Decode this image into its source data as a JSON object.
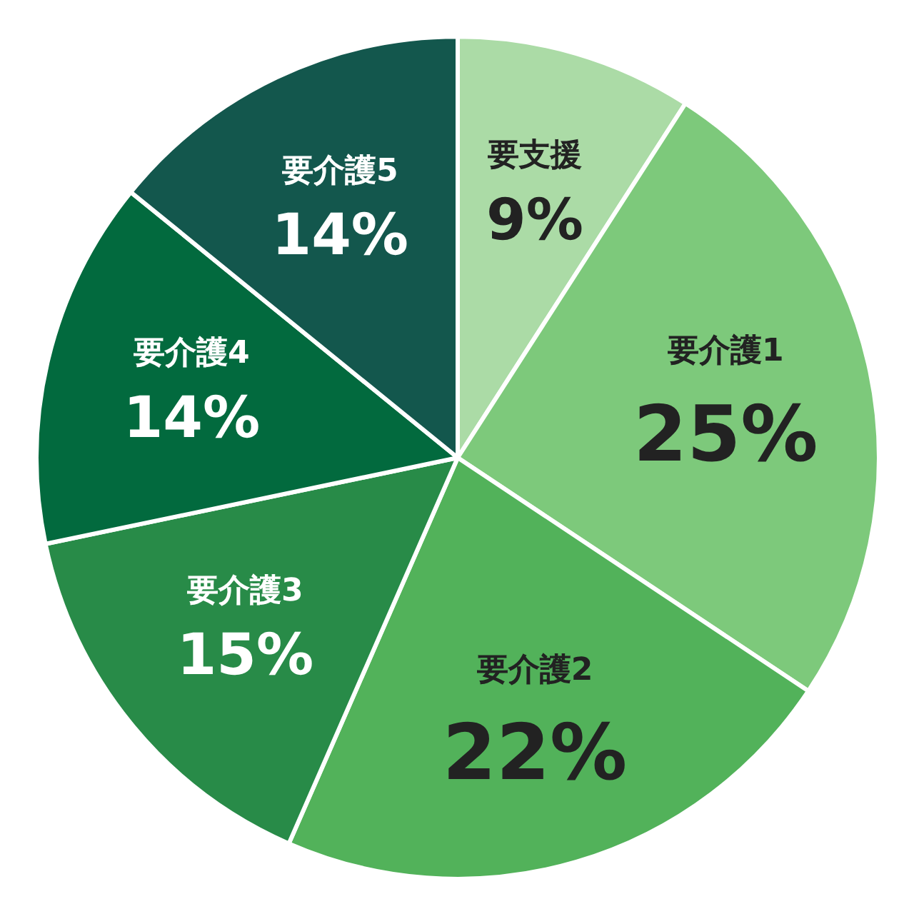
{
  "chart_data": {
    "type": "pie",
    "categories": [
      "要支援",
      "要介護1",
      "要介護2",
      "要介護3",
      "要介護4",
      "要介護5"
    ],
    "values": [
      9,
      25,
      22,
      15,
      14,
      14
    ],
    "colors": [
      "#abdba6",
      "#7dc97b",
      "#52b25a",
      "#288b48",
      "#026a3e",
      "#13574d"
    ],
    "value_labels": [
      "9%",
      "25%",
      "22%",
      "15%",
      "14%",
      "14%"
    ]
  }
}
